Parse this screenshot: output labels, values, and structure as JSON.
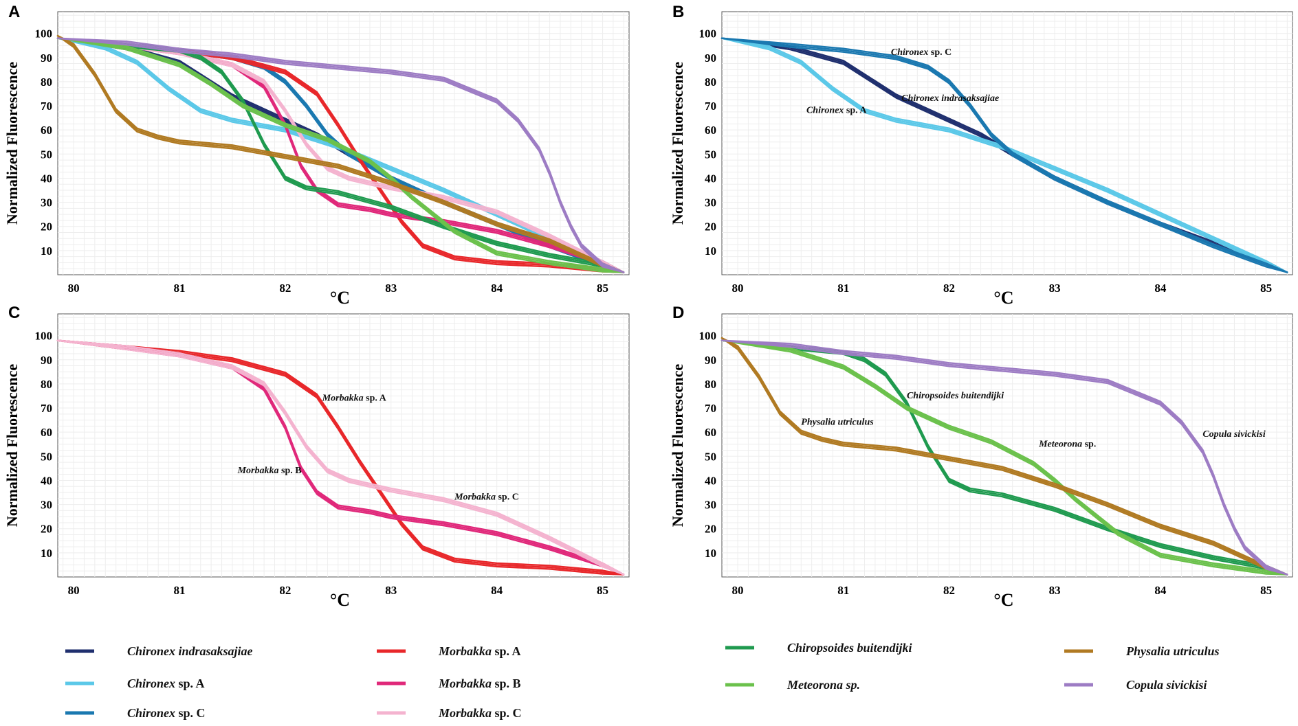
{
  "chart_data": [
    {
      "panel": "A",
      "type": "line",
      "xlabel": "°C",
      "ylabel": "Normalized Fluorescence",
      "xlim": [
        79.85,
        85.25
      ],
      "ylim": [
        0,
        109
      ],
      "xticks": [
        80,
        81,
        82,
        83,
        84,
        85
      ],
      "yticks": [
        10,
        20,
        30,
        40,
        50,
        60,
        70,
        80,
        90,
        100
      ],
      "grid": true,
      "annotations": [],
      "series": [
        {
          "name": "Chironex indrasaksajiae",
          "color": "#1f2f6e",
          "x": [
            79.85,
            80.5,
            81,
            81.5,
            82,
            82.3,
            82.6,
            83,
            83.5,
            84,
            84.5,
            85,
            85.2
          ],
          "y": [
            98,
            94,
            88,
            74,
            64,
            58,
            50,
            40,
            30,
            21,
            13,
            5,
            1
          ]
        },
        {
          "name": "Chironex sp. A",
          "color": "#5bc8e8",
          "x": [
            79.85,
            80.3,
            80.6,
            80.9,
            81.2,
            81.5,
            82,
            82.5,
            83,
            83.5,
            84,
            84.5,
            85,
            85.2
          ],
          "y": [
            98,
            94,
            88,
            77,
            68,
            64,
            60,
            53,
            44,
            35,
            25,
            15,
            5,
            1
          ]
        },
        {
          "name": "Chironex sp. C",
          "color": "#1a78b0",
          "x": [
            79.85,
            80.5,
            81,
            81.5,
            81.8,
            82,
            82.2,
            82.4,
            82.6,
            83,
            83.5,
            84,
            84.5,
            85,
            85.2
          ],
          "y": [
            98,
            95,
            93,
            90,
            86,
            80,
            70,
            58,
            50,
            40,
            30,
            21,
            12,
            4,
            1
          ]
        },
        {
          "name": "Morbakka sp. A",
          "color": "#e8272a",
          "x": [
            79.85,
            80.5,
            81,
            81.5,
            82,
            82.3,
            82.5,
            82.7,
            82.9,
            83.1,
            83.3,
            83.6,
            84,
            84.5,
            85,
            85.2
          ],
          "y": [
            98,
            95,
            93,
            90,
            84,
            75,
            62,
            48,
            35,
            22,
            12,
            7,
            5,
            4,
            2,
            1
          ]
        },
        {
          "name": "Morbakka sp. B",
          "color": "#e0287a",
          "x": [
            79.85,
            80.5,
            81,
            81.5,
            81.8,
            82,
            82.15,
            82.3,
            82.5,
            82.8,
            83,
            83.5,
            84,
            84.5,
            85,
            85.2
          ],
          "y": [
            98,
            95,
            92,
            87,
            78,
            62,
            45,
            35,
            29,
            27,
            25,
            22,
            18,
            12,
            5,
            1
          ]
        },
        {
          "name": "Morbakka sp. C",
          "color": "#f4b3cf",
          "x": [
            79.85,
            80.5,
            81,
            81.5,
            81.8,
            82,
            82.2,
            82.4,
            82.6,
            82.8,
            83,
            83.5,
            84,
            84.5,
            85,
            85.2
          ],
          "y": [
            98,
            95,
            92,
            87,
            80,
            68,
            54,
            44,
            40,
            38,
            36,
            32,
            26,
            16,
            5,
            1
          ]
        },
        {
          "name": "Chiropsoides buitendijki",
          "color": "#1f9a4f",
          "x": [
            79.85,
            80.5,
            81,
            81.2,
            81.4,
            81.6,
            81.8,
            82,
            82.2,
            82.5,
            83,
            83.5,
            84,
            84.5,
            85,
            85.2
          ],
          "y": [
            98,
            95,
            93,
            90,
            84,
            72,
            54,
            40,
            36,
            34,
            28,
            20,
            13,
            8,
            4,
            1
          ]
        },
        {
          "name": "Meteorona sp.",
          "color": "#6bc14c",
          "x": [
            79.85,
            80.5,
            81,
            81.3,
            81.6,
            82,
            82.4,
            82.8,
            83,
            83.2,
            83.6,
            84,
            84.5,
            85,
            85.2
          ],
          "y": [
            98,
            94,
            87,
            79,
            70,
            62,
            56,
            47,
            40,
            32,
            18,
            9,
            5,
            2,
            1
          ]
        },
        {
          "name": "Physalia utriculus",
          "color": "#b07a22",
          "x": [
            79.85,
            80,
            80.2,
            80.4,
            80.6,
            80.8,
            81,
            81.5,
            82,
            82.5,
            83,
            83.5,
            84,
            84.5,
            85,
            85.2
          ],
          "y": [
            99,
            95,
            83,
            68,
            60,
            57,
            55,
            53,
            49,
            45,
            38,
            30,
            21,
            14,
            4,
            1
          ]
        },
        {
          "name": "Copula sivickisi",
          "color": "#9d7cc4",
          "x": [
            79.85,
            80.5,
            81,
            81.5,
            82,
            82.5,
            83,
            83.5,
            84,
            84.2,
            84.4,
            84.5,
            84.6,
            84.7,
            84.8,
            85,
            85.2
          ],
          "y": [
            98,
            96,
            93,
            91,
            88,
            86,
            84,
            81,
            72,
            64,
            52,
            42,
            30,
            20,
            12,
            4,
            1
          ]
        }
      ]
    },
    {
      "panel": "B",
      "type": "line",
      "xlabel": "°C",
      "ylabel": "Normalized Fluorescence",
      "xlim": [
        79.85,
        85.25
      ],
      "ylim": [
        0,
        109
      ],
      "xticks": [
        80,
        81,
        82,
        83,
        84,
        85
      ],
      "yticks": [
        10,
        20,
        30,
        40,
        50,
        60,
        70,
        80,
        90,
        100
      ],
      "grid": true,
      "annotations": [
        {
          "italic": "Chironex",
          "rest": " sp. C",
          "x": 81.45,
          "y": 91
        },
        {
          "italic": "Chironex indrasaksajiae",
          "rest": "",
          "x": 81.55,
          "y": 72
        },
        {
          "italic": "Chironex",
          "rest": " sp. A",
          "x": 80.65,
          "y": 67
        }
      ],
      "series": [
        {
          "name": "Chironex indrasaksajiae",
          "color": "#1f2f6e",
          "x": [
            79.85,
            80.5,
            81,
            81.5,
            82,
            82.3,
            82.6,
            83,
            83.5,
            84,
            84.5,
            85,
            85.2
          ],
          "y": [
            98,
            94,
            88,
            74,
            64,
            58,
            50,
            40,
            30,
            21,
            13,
            5,
            1
          ]
        },
        {
          "name": "Chironex sp. A",
          "color": "#5bc8e8",
          "x": [
            79.85,
            80.3,
            80.6,
            80.9,
            81.2,
            81.5,
            82,
            82.5,
            83,
            83.5,
            84,
            84.5,
            85,
            85.2
          ],
          "y": [
            98,
            94,
            88,
            77,
            68,
            64,
            60,
            53,
            44,
            35,
            25,
            15,
            5,
            1
          ]
        },
        {
          "name": "Chironex sp. C",
          "color": "#1a78b0",
          "x": [
            79.85,
            80.5,
            81,
            81.5,
            81.8,
            82,
            82.2,
            82.4,
            82.6,
            83,
            83.5,
            84,
            84.5,
            85,
            85.2
          ],
          "y": [
            98,
            95,
            93,
            90,
            86,
            80,
            70,
            58,
            50,
            40,
            30,
            21,
            12,
            4,
            1
          ]
        }
      ]
    },
    {
      "panel": "C",
      "type": "line",
      "xlabel": "°C",
      "ylabel": "Normalized Fluorescence",
      "xlim": [
        79.85,
        85.25
      ],
      "ylim": [
        0,
        109
      ],
      "xticks": [
        80,
        81,
        82,
        83,
        84,
        85
      ],
      "yticks": [
        10,
        20,
        30,
        40,
        50,
        60,
        70,
        80,
        90,
        100
      ],
      "grid": true,
      "annotations": [
        {
          "italic": "Morbakka",
          "rest": " sp. A",
          "x": 82.35,
          "y": 73
        },
        {
          "italic": "Morbakka",
          "rest": " sp. B",
          "x": 81.55,
          "y": 43
        },
        {
          "italic": "Morbakka",
          "rest": " sp. C",
          "x": 83.6,
          "y": 32
        }
      ],
      "series": [
        {
          "name": "Morbakka sp. A",
          "color": "#e8272a",
          "x": [
            79.85,
            80.5,
            81,
            81.5,
            82,
            82.3,
            82.5,
            82.7,
            82.9,
            83.1,
            83.3,
            83.6,
            84,
            84.5,
            85,
            85.2
          ],
          "y": [
            98,
            95,
            93,
            90,
            84,
            75,
            62,
            48,
            35,
            22,
            12,
            7,
            5,
            4,
            2,
            1
          ]
        },
        {
          "name": "Morbakka sp. B",
          "color": "#e0287a",
          "x": [
            79.85,
            80.5,
            81,
            81.5,
            81.8,
            82,
            82.15,
            82.3,
            82.5,
            82.8,
            83,
            83.5,
            84,
            84.5,
            85,
            85.2
          ],
          "y": [
            98,
            95,
            92,
            87,
            78,
            62,
            45,
            35,
            29,
            27,
            25,
            22,
            18,
            12,
            5,
            1
          ]
        },
        {
          "name": "Morbakka sp. C",
          "color": "#f4b3cf",
          "x": [
            79.85,
            80.5,
            81,
            81.5,
            81.8,
            82,
            82.2,
            82.4,
            82.6,
            82.8,
            83,
            83.5,
            84,
            84.5,
            85,
            85.2
          ],
          "y": [
            98,
            95,
            92,
            87,
            80,
            68,
            54,
            44,
            40,
            38,
            36,
            32,
            26,
            16,
            5,
            1
          ]
        }
      ]
    },
    {
      "panel": "D",
      "type": "line",
      "xlabel": "°C",
      "ylabel": "Normalized Fluorescence",
      "xlim": [
        79.85,
        85.25
      ],
      "ylim": [
        0,
        109
      ],
      "xticks": [
        80,
        81,
        82,
        83,
        84,
        85
      ],
      "yticks": [
        10,
        20,
        30,
        40,
        50,
        60,
        70,
        80,
        90,
        100
      ],
      "grid": true,
      "annotations": [
        {
          "italic": "Chiropsoides buitendijki",
          "rest": "",
          "x": 81.6,
          "y": 74
        },
        {
          "italic": "Physalia utriculus",
          "rest": "",
          "x": 80.6,
          "y": 63
        },
        {
          "italic": "Meteorona",
          "rest": " sp.",
          "x": 82.85,
          "y": 54
        },
        {
          "italic": "Copula sivickisi",
          "rest": "",
          "x": 84.4,
          "y": 58
        }
      ],
      "series": [
        {
          "name": "Chiropsoides buitendijki",
          "color": "#1f9a4f",
          "x": [
            79.85,
            80.5,
            81,
            81.2,
            81.4,
            81.6,
            81.8,
            82,
            82.2,
            82.5,
            83,
            83.5,
            84,
            84.5,
            85,
            85.2
          ],
          "y": [
            98,
            95,
            93,
            90,
            84,
            72,
            54,
            40,
            36,
            34,
            28,
            20,
            13,
            8,
            4,
            1
          ]
        },
        {
          "name": "Meteorona sp.",
          "color": "#6bc14c",
          "x": [
            79.85,
            80.5,
            81,
            81.3,
            81.6,
            82,
            82.4,
            82.8,
            83,
            83.2,
            83.6,
            84,
            84.5,
            85,
            85.2
          ],
          "y": [
            98,
            94,
            87,
            79,
            70,
            62,
            56,
            47,
            40,
            32,
            18,
            9,
            5,
            2,
            1
          ]
        },
        {
          "name": "Physalia utriculus",
          "color": "#b07a22",
          "x": [
            79.85,
            80,
            80.2,
            80.4,
            80.6,
            80.8,
            81,
            81.5,
            82,
            82.5,
            83,
            83.5,
            84,
            84.5,
            85,
            85.2
          ],
          "y": [
            99,
            95,
            83,
            68,
            60,
            57,
            55,
            53,
            49,
            45,
            38,
            30,
            21,
            14,
            4,
            1
          ]
        },
        {
          "name": "Copula sivickisi",
          "color": "#9d7cc4",
          "x": [
            79.85,
            80.5,
            81,
            81.5,
            82,
            82.5,
            83,
            83.5,
            84,
            84.2,
            84.4,
            84.5,
            84.6,
            84.7,
            84.8,
            85,
            85.2
          ],
          "y": [
            98,
            96,
            93,
            91,
            88,
            86,
            84,
            81,
            72,
            64,
            52,
            42,
            30,
            20,
            12,
            4,
            1
          ]
        }
      ]
    }
  ],
  "legend": [
    {
      "italic": "Chironex indrasaksajiae",
      "rest": "",
      "color": "#1f2f6e"
    },
    {
      "italic": "Chironex",
      "rest": " sp. A",
      "color": "#5bc8e8"
    },
    {
      "italic": "Chironex",
      "rest": " sp. C",
      "color": "#1a78b0"
    },
    {
      "italic": "Morbakka",
      "rest": " sp. A",
      "color": "#e8272a"
    },
    {
      "italic": "Morbakka",
      "rest": " sp. B",
      "color": "#e0287a"
    },
    {
      "italic": "Morbakka",
      "rest": " sp. C",
      "color": "#f4b3cf"
    },
    {
      "italic": "Chiropsoides buitendijki",
      "rest": "",
      "color": "#1f9a4f"
    },
    {
      "italic": "Meteorona sp.",
      "rest": "",
      "color": "#6bc14c"
    },
    {
      "italic": "Physalia utriculus",
      "rest": "",
      "color": "#b07a22"
    },
    {
      "italic": "Copula sivickisi",
      "rest": "",
      "color": "#9d7cc4"
    }
  ]
}
